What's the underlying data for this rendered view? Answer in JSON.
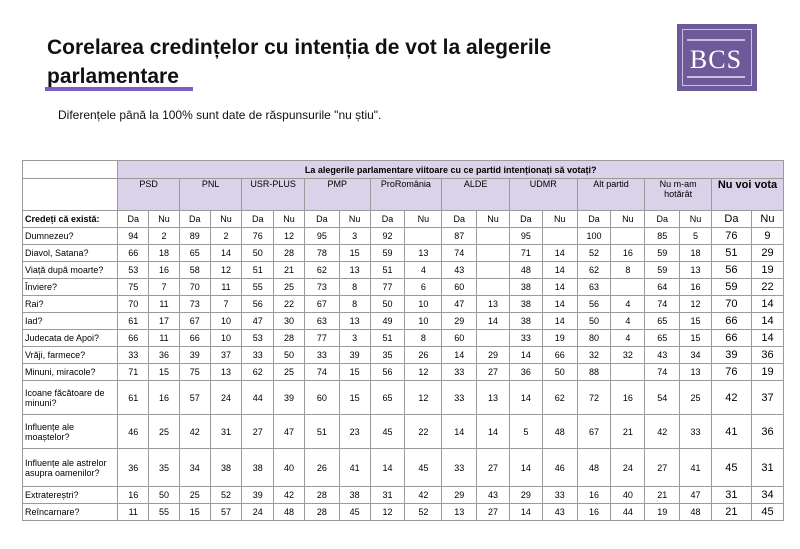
{
  "title": "Corelarea credințelor cu intenția de vot la alegerile parlamentare",
  "logo_text": "BCS",
  "subtitle": "Diferențele până la 100% sunt date de răspunsurile \"nu știu\".",
  "table": {
    "question": "La alegerile parlamentare viitoare cu ce partid intenționați să votați?",
    "row_header": "Credeți că există:",
    "parties": [
      "PSD",
      "PNL",
      "USR-PLUS",
      "PMP",
      "ProRomânia",
      "ALDE",
      "UDMR",
      "Alt partid",
      "Nu m-am hotărât",
      "Nu voi vota"
    ],
    "sub": [
      "Da",
      "Nu"
    ],
    "rows": [
      {
        "label": "Dumnezeu?",
        "values": [
          "94",
          "2",
          "89",
          "2",
          "76",
          "12",
          "95",
          "3",
          "92",
          "",
          "87",
          "",
          "95",
          "",
          "100",
          "",
          "85",
          "5",
          "76",
          "9"
        ]
      },
      {
        "label": "Diavol, Satana?",
        "values": [
          "66",
          "18",
          "65",
          "14",
          "50",
          "28",
          "78",
          "15",
          "59",
          "13",
          "74",
          "",
          "71",
          "14",
          "52",
          "16",
          "59",
          "18",
          "51",
          "29"
        ]
      },
      {
        "label": "Viață după moarte?",
        "values": [
          "53",
          "16",
          "58",
          "12",
          "51",
          "21",
          "62",
          "13",
          "51",
          "4",
          "43",
          "",
          "48",
          "14",
          "62",
          "8",
          "59",
          "13",
          "56",
          "19"
        ]
      },
      {
        "label": "Înviere?",
        "values": [
          "75",
          "7",
          "70",
          "11",
          "55",
          "25",
          "73",
          "8",
          "77",
          "6",
          "60",
          "",
          "38",
          "14",
          "63",
          "",
          "64",
          "16",
          "59",
          "22"
        ]
      },
      {
        "label": "Rai?",
        "values": [
          "70",
          "11",
          "73",
          "7",
          "56",
          "22",
          "67",
          "8",
          "50",
          "10",
          "47",
          "13",
          "38",
          "14",
          "56",
          "4",
          "74",
          "12",
          "70",
          "14"
        ]
      },
      {
        "label": "Iad?",
        "values": [
          "61",
          "17",
          "67",
          "10",
          "47",
          "30",
          "63",
          "13",
          "49",
          "10",
          "29",
          "14",
          "38",
          "14",
          "50",
          "4",
          "65",
          "15",
          "66",
          "14"
        ]
      },
      {
        "label": "Judecata de Apoi?",
        "values": [
          "66",
          "11",
          "66",
          "10",
          "53",
          "28",
          "77",
          "3",
          "51",
          "8",
          "60",
          "",
          "33",
          "19",
          "80",
          "4",
          "65",
          "15",
          "66",
          "14"
        ]
      },
      {
        "label": "Vrăji, farmece?",
        "values": [
          "33",
          "36",
          "39",
          "37",
          "33",
          "50",
          "33",
          "39",
          "35",
          "26",
          "14",
          "29",
          "14",
          "66",
          "32",
          "32",
          "43",
          "34",
          "39",
          "36"
        ]
      },
      {
        "label": "Minuni, miracole?",
        "values": [
          "71",
          "15",
          "75",
          "13",
          "62",
          "25",
          "74",
          "15",
          "56",
          "12",
          "33",
          "27",
          "36",
          "50",
          "88",
          "",
          "74",
          "13",
          "76",
          "19"
        ]
      },
      {
        "label": "Icoane făcătoare de minuni?",
        "values": [
          "61",
          "16",
          "57",
          "24",
          "44",
          "39",
          "60",
          "15",
          "65",
          "12",
          "33",
          "13",
          "14",
          "62",
          "72",
          "16",
          "54",
          "25",
          "42",
          "37"
        ]
      },
      {
        "label": "Influențe ale moaștelor?",
        "values": [
          "46",
          "25",
          "42",
          "31",
          "27",
          "47",
          "51",
          "23",
          "45",
          "22",
          "14",
          "14",
          "5",
          "48",
          "67",
          "21",
          "42",
          "33",
          "41",
          "36"
        ]
      },
      {
        "label": "Influențe ale astrelor asupra oamenilor?",
        "values": [
          "36",
          "35",
          "34",
          "38",
          "38",
          "40",
          "26",
          "41",
          "14",
          "45",
          "33",
          "27",
          "14",
          "46",
          "48",
          "24",
          "27",
          "41",
          "45",
          "31"
        ]
      },
      {
        "label": "Extratereștri?",
        "values": [
          "16",
          "50",
          "25",
          "52",
          "39",
          "42",
          "28",
          "38",
          "31",
          "42",
          "29",
          "43",
          "29",
          "33",
          "16",
          "40",
          "21",
          "47",
          "31",
          "34"
        ]
      },
      {
        "label": "Reîncarnare?",
        "values": [
          "11",
          "55",
          "15",
          "57",
          "24",
          "48",
          "28",
          "45",
          "12",
          "52",
          "13",
          "27",
          "14",
          "43",
          "16",
          "44",
          "19",
          "48",
          "21",
          "45"
        ]
      }
    ]
  }
}
